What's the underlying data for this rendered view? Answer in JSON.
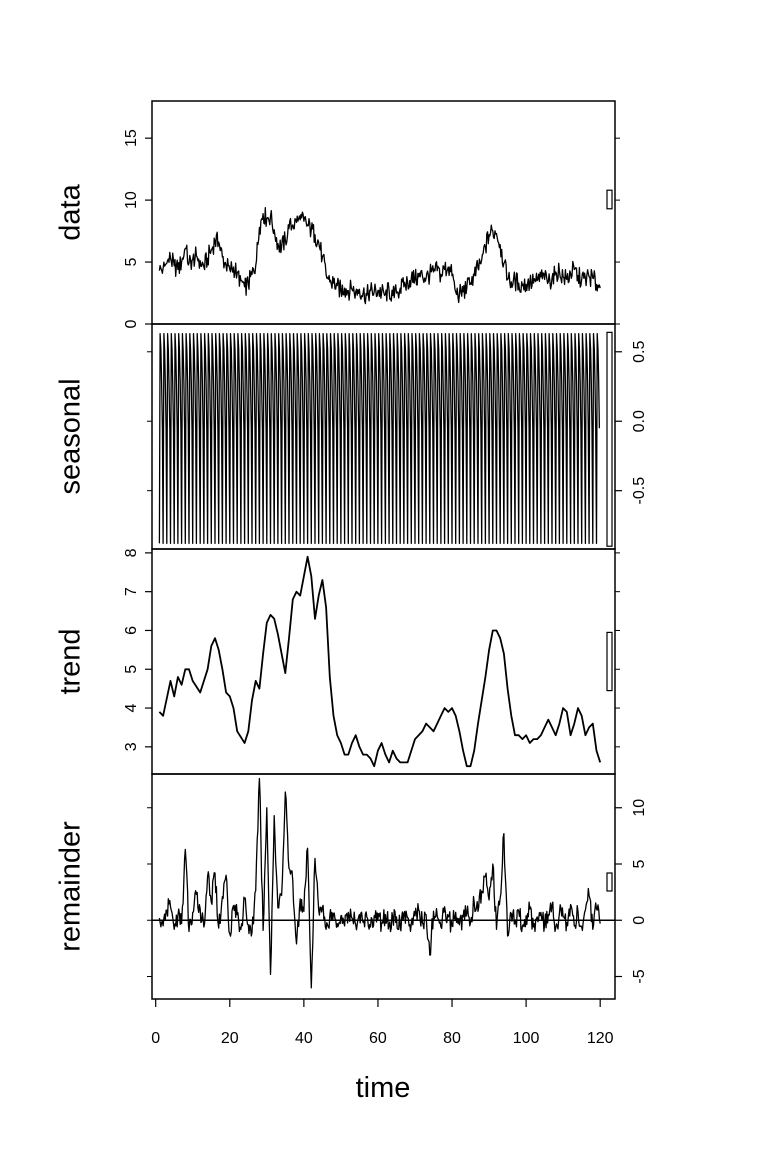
{
  "chart_data": {
    "type": "line",
    "title": "",
    "xlabel": "time",
    "xlim": [
      -1,
      124
    ],
    "x_ticks": [
      "0",
      "20",
      "40",
      "60",
      "80",
      "100",
      "120"
    ],
    "x_tick_values": [
      0,
      20,
      40,
      60,
      80,
      100,
      120
    ],
    "grid": false,
    "legend": "none",
    "line_color": "#000000",
    "panels": [
      {
        "name": "data",
        "label": "data",
        "y_axis_side": "left",
        "ylim": [
          0,
          18
        ],
        "y_ticks": [
          "0",
          "5",
          "10",
          "15"
        ],
        "y_tick_values": [
          0,
          5,
          10,
          15
        ],
        "range_bar": [
          9.3,
          10.8
        ],
        "x": [
          1,
          2,
          3,
          4,
          5,
          6,
          7,
          8,
          9,
          10,
          11,
          12,
          13,
          14,
          15,
          16,
          17,
          18,
          19,
          20,
          21,
          22,
          23,
          24,
          25,
          26,
          27,
          28,
          29,
          30,
          31,
          32,
          33,
          34,
          35,
          36,
          37,
          38,
          39,
          40,
          41,
          42,
          43,
          44,
          45,
          46,
          47,
          48,
          49,
          50,
          51,
          52,
          53,
          54,
          55,
          56,
          57,
          58,
          59,
          60,
          61,
          62,
          63,
          64,
          65,
          66,
          67,
          68,
          69,
          70,
          71,
          72,
          73,
          74,
          75,
          76,
          77,
          78,
          79,
          80,
          81,
          82,
          83,
          84,
          85,
          86,
          87,
          88,
          89,
          90,
          91,
          92,
          93,
          94,
          95,
          96,
          97,
          98,
          99,
          100,
          101,
          102,
          103,
          104,
          105,
          106,
          107,
          108,
          109,
          110,
          111,
          112,
          113,
          114,
          115,
          116,
          117,
          118,
          119,
          120
        ],
        "values": [
          4.3,
          4.5,
          4.9,
          5.3,
          4.7,
          4.4,
          5.0,
          6.1,
          4.9,
          5.2,
          5.5,
          5.1,
          4.6,
          5.3,
          6.0,
          6.7,
          6.6,
          5.4,
          4.7,
          4.4,
          4.6,
          4.1,
          3.5,
          3.0,
          3.2,
          4.0,
          4.7,
          7.8,
          8.9,
          8.5,
          8.7,
          7.6,
          6.5,
          6.2,
          6.8,
          7.7,
          8.0,
          8.2,
          8.4,
          8.3,
          8.0,
          7.6,
          7.2,
          6.6,
          5.4,
          4.0,
          3.4,
          3.3,
          3.1,
          2.7,
          2.9,
          2.7,
          2.8,
          2.6,
          2.8,
          2.5,
          2.3,
          2.7,
          2.6,
          2.7,
          2.5,
          2.4,
          2.7,
          2.3,
          2.5,
          2.9,
          3.0,
          3.4,
          3.7,
          3.6,
          3.8,
          3.9,
          3.7,
          4.0,
          4.2,
          4.3,
          4.0,
          4.4,
          4.6,
          3.9,
          2.6,
          2.4,
          2.6,
          2.9,
          3.3,
          3.9,
          4.5,
          5.2,
          6.2,
          7.2,
          7.5,
          7.3,
          6.4,
          4.9,
          3.6,
          3.4,
          3.5,
          3.3,
          3.1,
          3.2,
          3.4,
          3.3,
          3.5,
          3.8,
          3.6,
          3.4,
          3.7,
          4.2,
          4.3,
          3.8,
          3.6,
          4.1,
          4.4,
          3.9,
          3.6,
          3.7,
          3.8,
          3.7,
          3.2,
          2.9
        ]
      },
      {
        "name": "seasonal",
        "label": "seasonal",
        "y_axis_side": "right",
        "ylim": [
          -0.92,
          0.7
        ],
        "y_ticks": [
          "-0.5",
          "0.0",
          "0.5"
        ],
        "y_tick_values": [
          -0.5,
          0.0,
          0.5
        ],
        "range_bar": [
          -0.9,
          0.64
        ],
        "period": 1,
        "pattern": [
          -0.88,
          0.63,
          0.52,
          0.28,
          -0.05
        ]
      },
      {
        "name": "trend",
        "label": "trend",
        "y_axis_side": "left",
        "ylim": [
          2.3,
          8.1
        ],
        "y_ticks": [
          "3",
          "4",
          "5",
          "6",
          "7",
          "8"
        ],
        "y_tick_values": [
          3,
          4,
          5,
          6,
          7,
          8
        ],
        "range_bar": [
          4.45,
          5.95
        ],
        "x": [
          1,
          2,
          4,
          5,
          6,
          7,
          8,
          9,
          10,
          12,
          14,
          15,
          16,
          17,
          18,
          19,
          20,
          21,
          22,
          24,
          25,
          26,
          27,
          28,
          29,
          30,
          31,
          32,
          33,
          34,
          35,
          36,
          37,
          38,
          39,
          40,
          41,
          42,
          43,
          44,
          45,
          46,
          47,
          48,
          49,
          50,
          51,
          52,
          53,
          54,
          55,
          56,
          57,
          58,
          59,
          60,
          61,
          62,
          63,
          64,
          65,
          66,
          67,
          68,
          69,
          70,
          71,
          72,
          73,
          74,
          75,
          76,
          77,
          78,
          79,
          80,
          81,
          82,
          83,
          84,
          85,
          86,
          87,
          88,
          89,
          90,
          91,
          92,
          93,
          94,
          95,
          96,
          97,
          98,
          99,
          100,
          101,
          102,
          103,
          104,
          105,
          106,
          107,
          108,
          109,
          110,
          111,
          112,
          113,
          114,
          115,
          116,
          117,
          118,
          119,
          120
        ],
        "values": [
          3.9,
          3.8,
          4.7,
          4.3,
          4.8,
          4.6,
          5.0,
          5.0,
          4.7,
          4.4,
          5.0,
          5.6,
          5.8,
          5.5,
          5.0,
          4.4,
          4.3,
          4.0,
          3.4,
          3.1,
          3.4,
          4.2,
          4.7,
          4.5,
          5.4,
          6.2,
          6.4,
          6.3,
          5.9,
          5.4,
          4.9,
          5.8,
          6.8,
          7.0,
          6.9,
          7.4,
          7.9,
          7.4,
          6.3,
          6.9,
          7.3,
          6.6,
          4.8,
          3.8,
          3.3,
          3.1,
          2.8,
          2.8,
          3.1,
          3.3,
          3.0,
          2.8,
          2.8,
          2.7,
          2.5,
          2.9,
          3.1,
          2.8,
          2.6,
          2.9,
          2.7,
          2.6,
          2.6,
          2.6,
          2.9,
          3.2,
          3.3,
          3.4,
          3.6,
          3.5,
          3.4,
          3.6,
          3.8,
          4.0,
          3.9,
          4.0,
          3.8,
          3.4,
          2.9,
          2.5,
          2.5,
          2.9,
          3.6,
          4.2,
          4.8,
          5.5,
          6.0,
          6.0,
          5.8,
          5.4,
          4.5,
          3.8,
          3.3,
          3.3,
          3.2,
          3.3,
          3.1,
          3.2,
          3.2,
          3.3,
          3.5,
          3.7,
          3.5,
          3.3,
          3.6,
          4.0,
          3.9,
          3.3,
          3.6,
          4.0,
          3.8,
          3.3,
          3.5,
          3.6,
          2.9,
          2.6
        ]
      },
      {
        "name": "remainder",
        "label": "remainder",
        "y_axis_side": "right",
        "ylim": [
          -7,
          13
        ],
        "y_ticks": [
          "-5",
          "0",
          "5",
          "10"
        ],
        "y_tick_values": [
          -5,
          0,
          5,
          10
        ],
        "range_bar": [
          2.6,
          4.2
        ],
        "zero_line": true,
        "x": [
          1,
          2,
          3,
          4,
          5,
          6,
          7,
          8,
          9,
          10,
          11,
          12,
          13,
          14,
          15,
          16,
          17,
          18,
          19,
          20,
          21,
          22,
          23,
          24,
          25,
          26,
          27,
          28,
          29,
          30,
          31,
          32,
          33,
          34,
          35,
          36,
          37,
          38,
          39,
          40,
          41,
          42,
          43,
          44,
          45,
          46,
          47,
          48,
          49,
          50,
          51,
          52,
          53,
          54,
          55,
          56,
          57,
          58,
          59,
          60,
          61,
          62,
          63,
          64,
          65,
          66,
          67,
          68,
          69,
          70,
          71,
          72,
          73,
          74,
          75,
          76,
          77,
          78,
          79,
          80,
          81,
          82,
          83,
          84,
          85,
          86,
          87,
          88,
          89,
          90,
          91,
          92,
          93,
          94,
          95,
          96,
          97,
          98,
          99,
          100,
          101,
          102,
          103,
          104,
          105,
          106,
          107,
          108,
          109,
          110,
          111,
          112,
          113,
          114,
          115,
          116,
          117,
          118,
          119,
          120
        ],
        "values": [
          0.2,
          -0.5,
          0.9,
          1.2,
          -0.8,
          0.4,
          -0.3,
          6.3,
          -1.0,
          0.7,
          2.3,
          1.0,
          -0.6,
          3.9,
          1.6,
          4.2,
          -0.7,
          2.1,
          4.0,
          -1.2,
          1.3,
          0.5,
          -0.8,
          1.9,
          -0.4,
          -1.1,
          2.6,
          12.6,
          -0.9,
          10.0,
          -4.8,
          9.3,
          1.1,
          2.2,
          11.4,
          4.6,
          3.5,
          -2.1,
          1.9,
          0.8,
          6.4,
          -6.0,
          5.5,
          0.9,
          1.2,
          -0.8,
          0.4,
          0.6,
          -0.3,
          0.4,
          -0.5,
          0.7,
          0.2,
          -0.4,
          0.5,
          -0.2,
          0.3,
          -0.6,
          0.4,
          0.1,
          -0.3,
          0.5,
          -0.4,
          0.2,
          0.3,
          -0.5,
          0.6,
          0.2,
          -0.3,
          0.4,
          0.9,
          -0.2,
          0.5,
          -3.1,
          0.8,
          0.4,
          -0.6,
          1.2,
          0.3,
          -0.5,
          0.7,
          -0.4,
          0.3,
          0.6,
          -0.2,
          1.6,
          0.8,
          2.6,
          3.9,
          1.8,
          5.0,
          -0.8,
          2.0,
          7.7,
          -1.4,
          0.6,
          -0.3,
          0.8,
          -0.5,
          0.4,
          1.0,
          -0.6,
          0.3,
          0.7,
          -0.4,
          0.5,
          1.3,
          -0.7,
          0.6,
          0.3,
          -0.2,
          1.4,
          -0.5,
          0.8,
          -0.6,
          0.9,
          2.2,
          -0.8,
          1.0,
          -0.3
        ]
      }
    ]
  }
}
